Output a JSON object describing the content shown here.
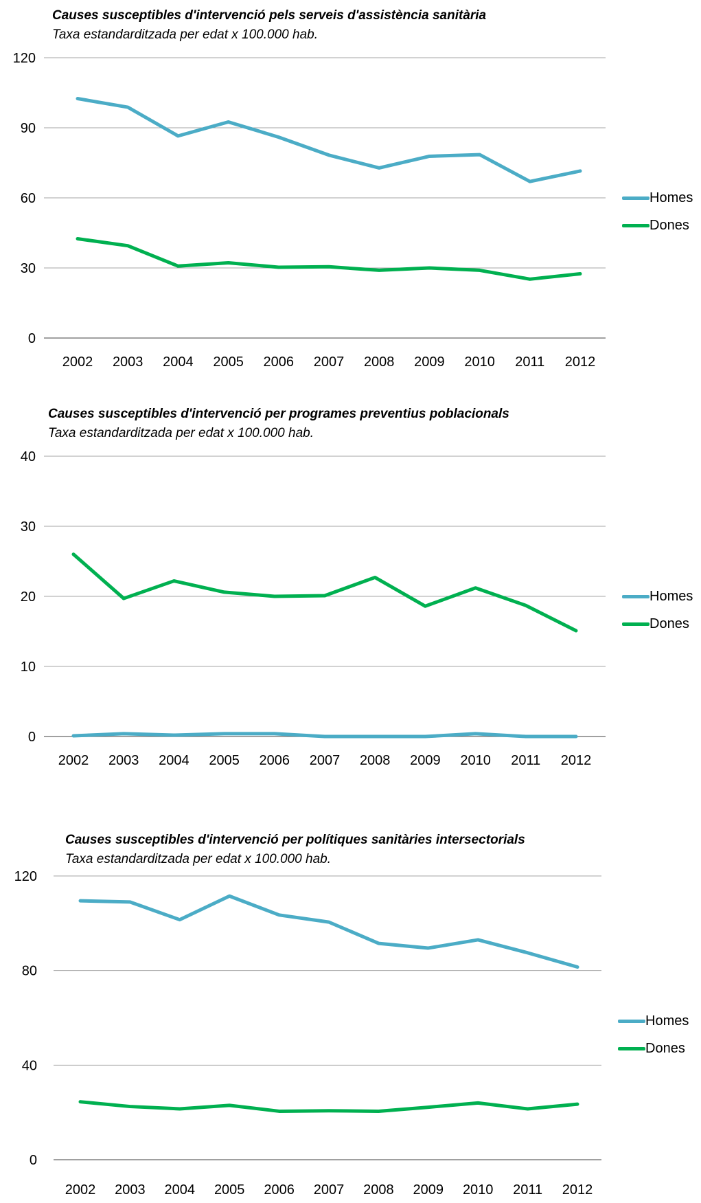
{
  "colors": {
    "homes": "#4BACC6",
    "dones": "#00B050",
    "grid": "#A6A6A6",
    "axis": "#808080"
  },
  "chart_data": [
    {
      "type": "line",
      "title": "Causes susceptibles d'intervenció pels serveis d'assistència sanitària",
      "subtitle": "Taxa estandarditzada per edat x 100.000 hab.",
      "categories": [
        "2002",
        "2003",
        "2004",
        "2005",
        "2006",
        "2007",
        "2008",
        "2009",
        "2010",
        "2011",
        "2012"
      ],
      "yticks": [
        "0",
        "30",
        "60",
        "90",
        "120"
      ],
      "ylim": [
        0,
        120
      ],
      "grid": true,
      "legend": "right",
      "series": [
        {
          "name": "Homes",
          "values": [
            102.5,
            98.8,
            86.5,
            92.5,
            86.0,
            78.3,
            72.8,
            77.8,
            78.5,
            67.0,
            71.5
          ]
        },
        {
          "name": "Dones",
          "values": [
            42.5,
            39.5,
            30.8,
            32.2,
            30.3,
            30.5,
            29.0,
            30.0,
            29.0,
            25.2,
            27.5
          ]
        }
      ]
    },
    {
      "type": "line",
      "title": "Causes susceptibles d'intervenció per programes preventius poblacionals",
      "subtitle": "Taxa estandarditzada per edat x 100.000 hab.",
      "categories": [
        "2002",
        "2003",
        "2004",
        "2005",
        "2006",
        "2007",
        "2008",
        "2009",
        "2010",
        "2011",
        "2012"
      ],
      "yticks": [
        "0",
        "10",
        "20",
        "30",
        "40"
      ],
      "ylim": [
        0,
        40
      ],
      "grid": true,
      "legend": "right",
      "series": [
        {
          "name": "Homes",
          "values": [
            0.1,
            0.4,
            0.2,
            0.4,
            0.4,
            0.0,
            0.0,
            0.0,
            0.4,
            0.0,
            0.0
          ]
        },
        {
          "name": "Dones",
          "values": [
            26.0,
            19.7,
            22.2,
            20.6,
            20.0,
            20.1,
            22.7,
            18.6,
            21.2,
            18.7,
            15.1
          ]
        }
      ]
    },
    {
      "type": "line",
      "title": "Causes susceptibles d'intervenció per polítiques sanitàries intersectorials",
      "subtitle": "Taxa estandarditzada per edat x 100.000 hab.",
      "categories": [
        "2002",
        "2003",
        "2004",
        "2005",
        "2006",
        "2007",
        "2008",
        "2009",
        "2010",
        "2011",
        "2012"
      ],
      "yticks": [
        "0",
        "40",
        "80",
        "120"
      ],
      "ylim": [
        0,
        120
      ],
      "grid": true,
      "legend": "right",
      "series": [
        {
          "name": "Homes",
          "values": [
            109.5,
            109.0,
            101.5,
            111.5,
            103.5,
            100.5,
            91.5,
            89.5,
            93.0,
            87.5,
            81.5
          ]
        },
        {
          "name": "Dones",
          "values": [
            24.5,
            22.5,
            21.5,
            23.0,
            20.5,
            20.7,
            20.5,
            22.2,
            24.0,
            21.5,
            23.5
          ]
        }
      ]
    }
  ]
}
